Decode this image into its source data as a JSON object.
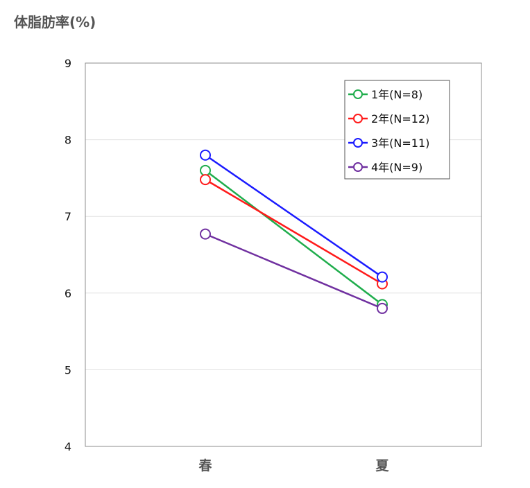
{
  "title": "体脂肪率(%)",
  "chart_data": {
    "type": "line",
    "title": "体脂肪率(%)",
    "xlabel": "",
    "ylabel": "",
    "categories": [
      "春",
      "夏"
    ],
    "ylim": [
      4,
      9
    ],
    "yticks": [
      4,
      5,
      6,
      7,
      8,
      9
    ],
    "grid": true,
    "legend_position": "top-right",
    "series": [
      {
        "name": "1年(N=8)",
        "color": "#1fad4c",
        "values": [
          7.6,
          5.85
        ]
      },
      {
        "name": "2年(N=12)",
        "color": "#ff1a1a",
        "values": [
          7.48,
          6.12
        ]
      },
      {
        "name": "3年(N=11)",
        "color": "#1a1aff",
        "values": [
          7.8,
          6.21
        ]
      },
      {
        "name": "4年(N=9)",
        "color": "#7030a0",
        "values": [
          6.77,
          5.8
        ]
      }
    ]
  }
}
